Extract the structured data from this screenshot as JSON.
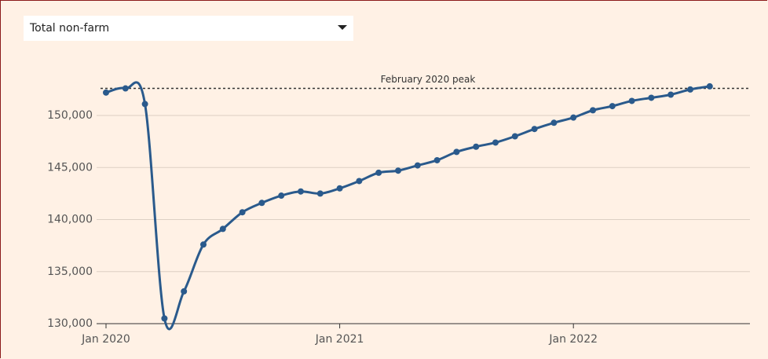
{
  "control": {
    "label": "Total non-farm"
  },
  "chart_data": {
    "type": "line",
    "x": [
      "2020-01",
      "2020-02",
      "2020-03",
      "2020-04",
      "2020-05",
      "2020-06",
      "2020-07",
      "2020-08",
      "2020-09",
      "2020-10",
      "2020-11",
      "2020-12",
      "2021-01",
      "2021-02",
      "2021-03",
      "2021-04",
      "2021-05",
      "2021-06",
      "2021-07",
      "2021-08",
      "2021-09",
      "2021-10",
      "2021-11",
      "2021-12",
      "2022-01",
      "2022-02",
      "2022-03",
      "2022-04",
      "2022-05",
      "2022-06",
      "2022-07",
      "2022-08"
    ],
    "series": [
      {
        "color": "#2a5a8c",
        "values": [
          152200,
          152600,
          151100,
          130500,
          133100,
          137600,
          139100,
          140700,
          141600,
          142300,
          142700,
          142500,
          143000,
          143700,
          144500,
          144700,
          145200,
          145700,
          146500,
          147000,
          147400,
          148000,
          148700,
          149300,
          149800,
          150500,
          150900,
          151400,
          151700,
          152000,
          152500,
          152800
        ]
      }
    ],
    "annotation": {
      "text": "February 2020 peak",
      "value": 152600
    },
    "ylim": [
      130000,
      154000
    ],
    "yticks": [
      {
        "value": 130000,
        "label": "130,000"
      },
      {
        "value": 135000,
        "label": "135,000"
      },
      {
        "value": 140000,
        "label": "140,000"
      },
      {
        "value": 145000,
        "label": "145,000"
      },
      {
        "value": 150000,
        "label": "150,000"
      }
    ],
    "xticks": [
      {
        "value": "2020-01",
        "label": "Jan 2020"
      },
      {
        "value": "2021-01",
        "label": "Jan 2021"
      },
      {
        "value": "2022-01",
        "label": "Jan 2022"
      }
    ],
    "grid": true
  }
}
